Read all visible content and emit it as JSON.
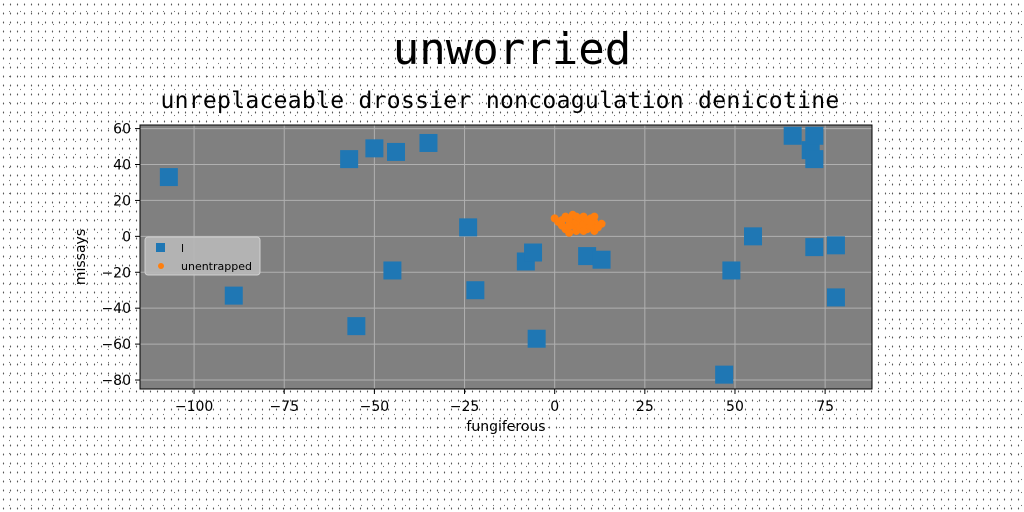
{
  "chart_data": {
    "type": "scatter",
    "title": "unworried",
    "subtitle": "unreplaceable drossier noncoagulation denicotine",
    "xlabel": "fungiferous",
    "ylabel": "missays",
    "xlim": [
      -115,
      88
    ],
    "ylim": [
      -85,
      62
    ],
    "xticks": [
      -100,
      -75,
      -50,
      -25,
      0,
      25,
      50,
      75
    ],
    "yticks": [
      -80,
      -60,
      -40,
      -20,
      0,
      20,
      40,
      60
    ],
    "xtick_labels": [
      "−100",
      "−75",
      "−50",
      "−25",
      "0",
      "25",
      "50",
      "75"
    ],
    "ytick_labels": [
      "−80",
      "−60",
      "−40",
      "−20",
      "0",
      "20",
      "40",
      "60"
    ],
    "grid": true,
    "plot_background": "#808080",
    "legend_position": "center-left",
    "series": [
      {
        "name": "l",
        "marker": "square",
        "color": "#1f77b4",
        "points": [
          [
            -107,
            33
          ],
          [
            -89,
            -33
          ],
          [
            -57,
            43
          ],
          [
            -50,
            49
          ],
          [
            -44,
            47
          ],
          [
            -35,
            52
          ],
          [
            -55,
            -50
          ],
          [
            -45,
            -19
          ],
          [
            -24,
            5
          ],
          [
            -22,
            -30
          ],
          [
            -8,
            -14
          ],
          [
            -6,
            -9
          ],
          [
            -5,
            -57
          ],
          [
            9,
            -11
          ],
          [
            13,
            -13
          ],
          [
            47,
            -77
          ],
          [
            49,
            -19
          ],
          [
            55,
            0
          ],
          [
            66,
            56
          ],
          [
            71,
            48
          ],
          [
            72,
            43
          ],
          [
            72,
            56
          ],
          [
            72,
            -6
          ],
          [
            78,
            -5
          ],
          [
            78,
            -34
          ]
        ]
      },
      {
        "name": "unentrapped",
        "marker": "circle",
        "color": "#ff7f0e",
        "points": [
          [
            0,
            10
          ],
          [
            1,
            8
          ],
          [
            2,
            6
          ],
          [
            3,
            11
          ],
          [
            3,
            4
          ],
          [
            4,
            9
          ],
          [
            4,
            2
          ],
          [
            5,
            12
          ],
          [
            5,
            6
          ],
          [
            6,
            8
          ],
          [
            6,
            3
          ],
          [
            7,
            10
          ],
          [
            7,
            5
          ],
          [
            8,
            7
          ],
          [
            8,
            11
          ],
          [
            9,
            4
          ],
          [
            9,
            9
          ],
          [
            10,
            6
          ],
          [
            10,
            10
          ],
          [
            11,
            3
          ],
          [
            11,
            8
          ],
          [
            12,
            6
          ],
          [
            12,
            5
          ],
          [
            13,
            7
          ],
          [
            2,
            9
          ],
          [
            6,
            11
          ],
          [
            8,
            3
          ],
          [
            10,
            8
          ],
          [
            4,
            6
          ],
          [
            11,
            11
          ]
        ]
      }
    ]
  }
}
